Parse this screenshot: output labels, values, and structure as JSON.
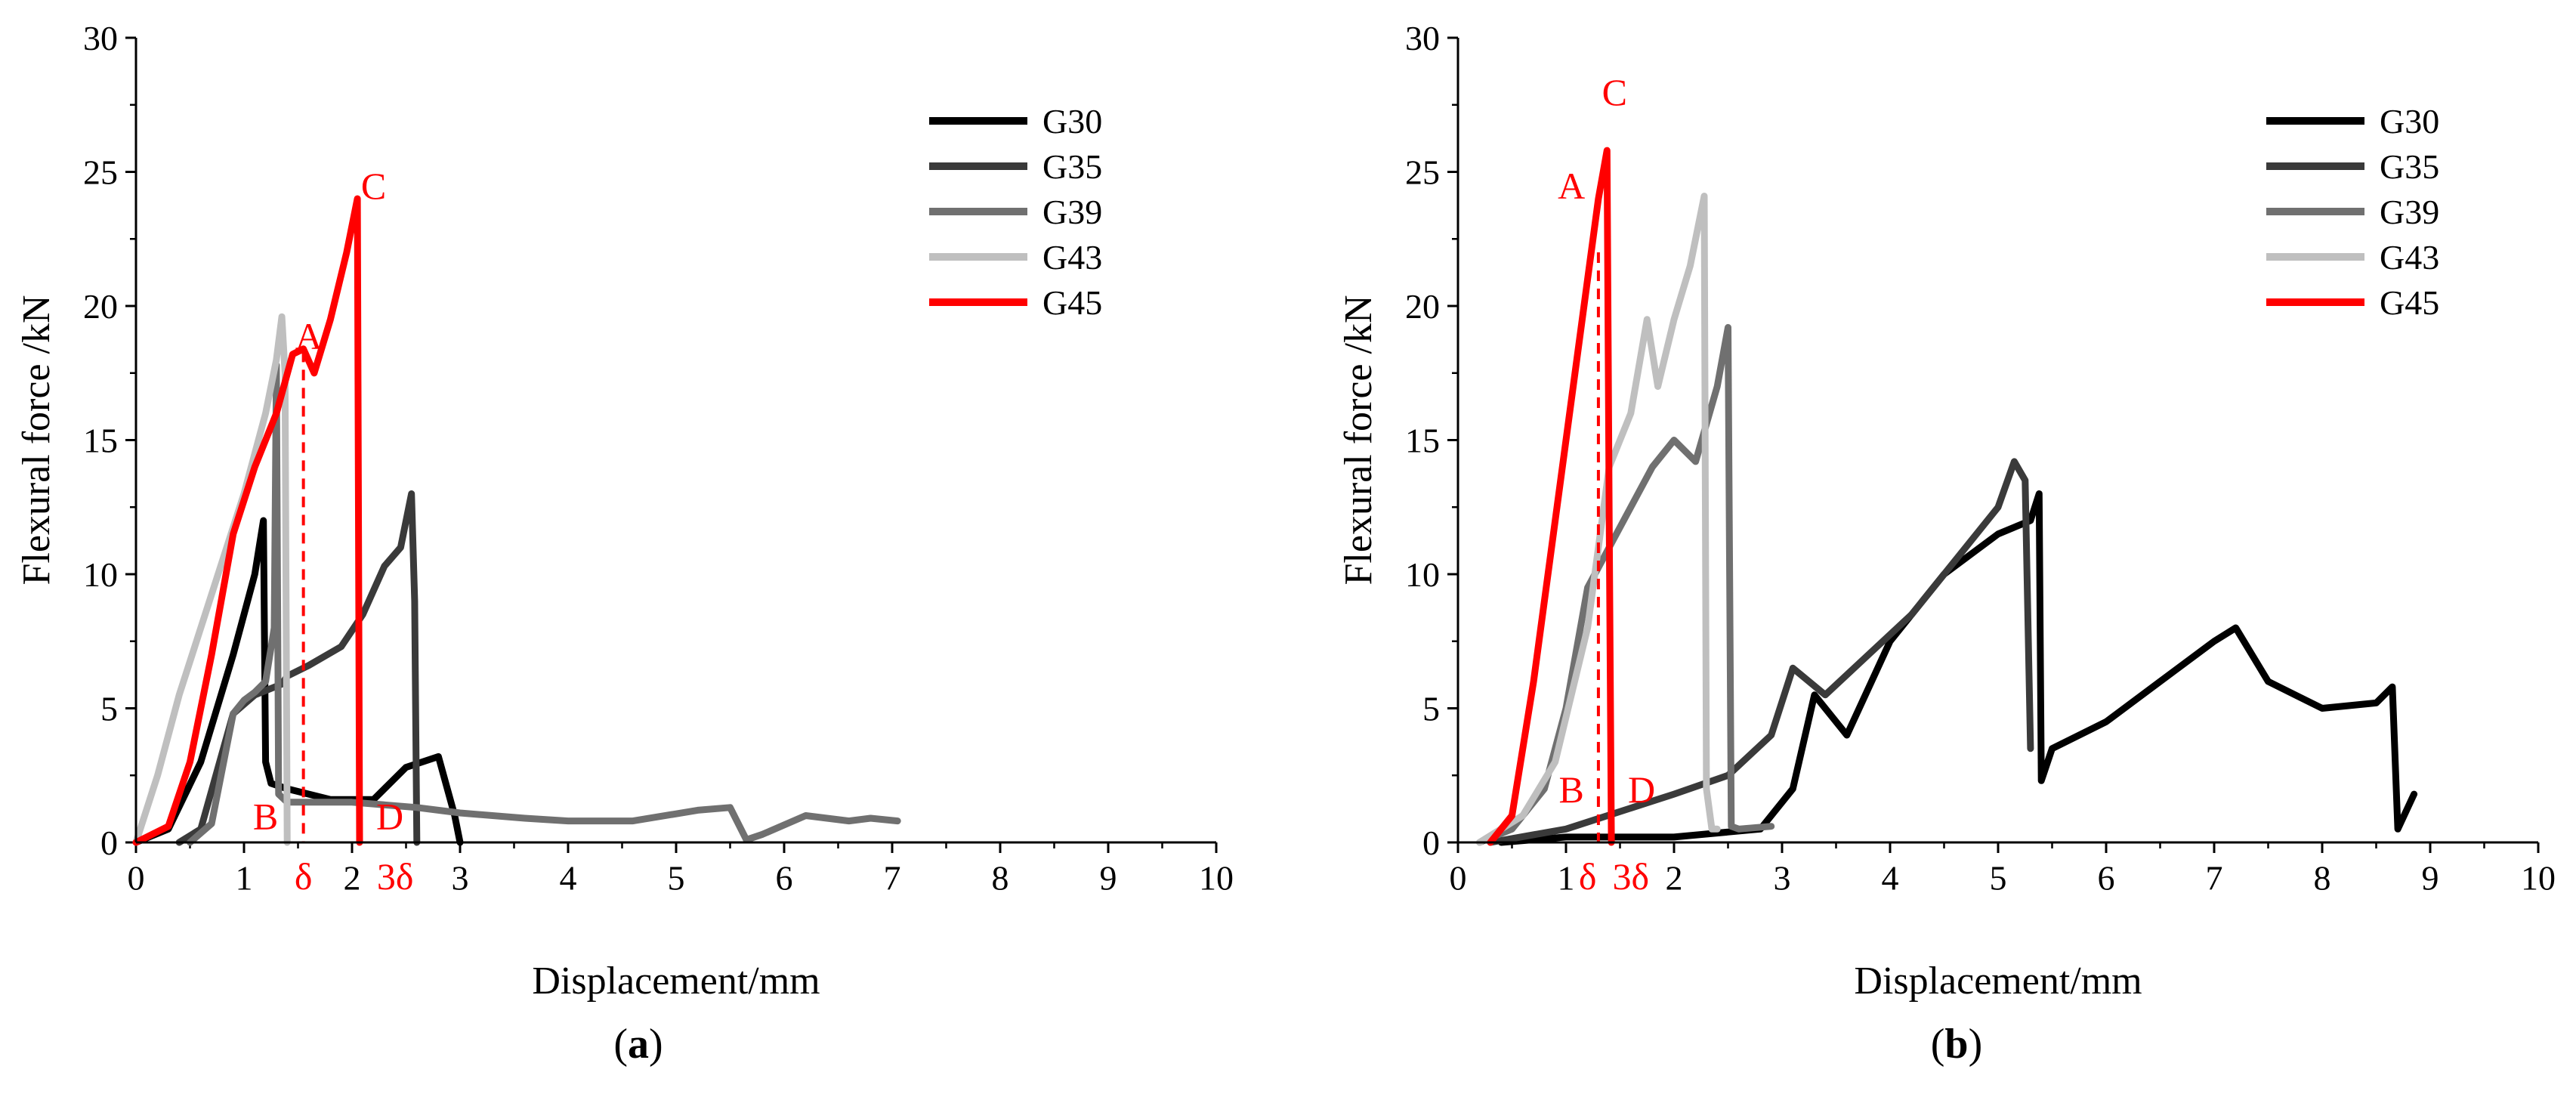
{
  "colors": {
    "G30": "#000000",
    "G35": "#3a3a3a",
    "G39": "#707070",
    "G43": "#bfbfbf",
    "G45": "#ff0000",
    "annotation": "#ff0000",
    "axis": "#000000"
  },
  "chart_data": [
    {
      "panel_label": "(a)",
      "panel_letter": "a",
      "type": "line",
      "title": "",
      "xlabel": "Displacement/mm",
      "ylabel": "Flexural force /kN",
      "xlim": [
        0,
        10
      ],
      "ylim": [
        0,
        30
      ],
      "x_ticks": [
        "0",
        "1",
        "2",
        "3",
        "4",
        "5",
        "6",
        "7",
        "8",
        "9",
        "10"
      ],
      "y_ticks": [
        "0",
        "5",
        "10",
        "15",
        "20",
        "25",
        "30"
      ],
      "legend_position": "top-right",
      "series": [
        {
          "name": "G30",
          "x": [
            0,
            0.3,
            0.6,
            0.9,
            1.1,
            1.18,
            1.2,
            1.25,
            1.4,
            1.8,
            2.2,
            2.5,
            2.8,
            2.95,
            3.0
          ],
          "y": [
            0,
            0.5,
            3,
            7,
            10,
            12,
            3,
            2.2,
            2.0,
            1.6,
            1.6,
            2.8,
            3.2,
            1.0,
            0
          ]
        },
        {
          "name": "G35",
          "x": [
            0.4,
            0.6,
            0.9,
            1.1,
            1.35,
            1.4,
            1.6,
            1.9,
            2.1,
            2.3,
            2.45,
            2.55,
            2.58,
            2.6
          ],
          "y": [
            0,
            0.5,
            4.8,
            5.5,
            5.9,
            6.2,
            6.6,
            7.3,
            8.5,
            10.3,
            11,
            13,
            9,
            0
          ]
        },
        {
          "name": "G39",
          "x": [
            0.5,
            0.7,
            0.9,
            1.0,
            1.1,
            1.2,
            1.28,
            1.3,
            1.32,
            1.4,
            2.0,
            2.6,
            3.0,
            3.6,
            4.0,
            4.6,
            5.2,
            5.5,
            5.65,
            5.8,
            6.2,
            6.6,
            6.8,
            7.05
          ],
          "y": [
            0,
            0.7,
            4.8,
            5.3,
            5.6,
            6,
            8,
            17.8,
            1.8,
            1.5,
            1.5,
            1.3,
            1.1,
            0.9,
            0.8,
            0.8,
            1.2,
            1.3,
            0.1,
            0.3,
            1.0,
            0.8,
            0.9,
            0.8
          ]
        },
        {
          "name": "G43",
          "x": [
            0,
            0.2,
            0.4,
            0.6,
            0.8,
            1.0,
            1.2,
            1.3,
            1.35,
            1.38,
            1.4
          ],
          "y": [
            0,
            2.5,
            5.5,
            8,
            10.5,
            13,
            16,
            18,
            19.6,
            17.5,
            0
          ]
        },
        {
          "name": "G45",
          "x": [
            0,
            0.3,
            0.5,
            0.7,
            0.9,
            1.1,
            1.3,
            1.45,
            1.55,
            1.65,
            1.8,
            1.95,
            2.05,
            2.07
          ],
          "y": [
            0,
            0.6,
            3,
            7,
            11.5,
            14,
            16,
            18.2,
            18.4,
            17.5,
            19.5,
            22,
            24,
            0
          ]
        }
      ],
      "annotations": {
        "A": {
          "label": "A",
          "x": 1.6,
          "y": 18.4
        },
        "B": {
          "label": "B",
          "x": 1.2,
          "y": 0.5
        },
        "C": {
          "label": "C",
          "x": 2.2,
          "y": 24
        },
        "D": {
          "label": "D",
          "x": 2.35,
          "y": 0.5
        },
        "delta": {
          "label": "δ",
          "x": 1.55
        },
        "three_delta": {
          "label": "3δ",
          "x": 2.4
        },
        "dashed_x": 1.55,
        "dashed_y": 18.3
      }
    },
    {
      "panel_label": "(b)",
      "panel_letter": "b",
      "type": "line",
      "title": "",
      "xlabel": "Displacement/mm",
      "ylabel": "Flexural force /kN",
      "xlim": [
        0,
        10
      ],
      "ylim": [
        0,
        30
      ],
      "x_ticks": [
        "0",
        "1",
        "2",
        "3",
        "4",
        "5",
        "6",
        "7",
        "8",
        "9",
        "10"
      ],
      "y_ticks": [
        "0",
        "5",
        "10",
        "15",
        "20",
        "25",
        "30"
      ],
      "legend_position": "top-right",
      "series": [
        {
          "name": "G30",
          "x": [
            0.4,
            1.0,
            2.0,
            2.8,
            3.1,
            3.3,
            3.6,
            4.0,
            4.5,
            5.0,
            5.3,
            5.38,
            5.4,
            5.5,
            6.0,
            6.5,
            7.0,
            7.2,
            7.5,
            8.0,
            8.5,
            8.65,
            8.7,
            8.85
          ],
          "y": [
            0,
            0.2,
            0.2,
            0.5,
            2,
            5.5,
            4,
            7.5,
            10,
            11.5,
            12,
            13,
            2.3,
            3.5,
            4.5,
            6,
            7.5,
            8,
            6,
            5,
            5.2,
            5.8,
            0.5,
            1.8
          ]
        },
        {
          "name": "G35",
          "x": [
            0.3,
            1.0,
            2.0,
            2.5,
            2.9,
            3.1,
            3.4,
            3.8,
            4.2,
            4.6,
            5.0,
            5.15,
            5.25,
            5.3
          ],
          "y": [
            0,
            0.5,
            1.8,
            2.5,
            4,
            6.5,
            5.5,
            7,
            8.5,
            10.5,
            12.5,
            14.2,
            13.5,
            3.5
          ]
        },
        {
          "name": "G39",
          "x": [
            0.2,
            0.5,
            0.8,
            1.0,
            1.2,
            1.4,
            1.8,
            2.0,
            2.2,
            2.4,
            2.5,
            2.53,
            2.6,
            2.9
          ],
          "y": [
            0,
            0.5,
            2,
            5,
            9.5,
            11,
            14,
            15,
            14.2,
            17,
            19.2,
            0.6,
            0.5,
            0.6
          ]
        },
        {
          "name": "G43",
          "x": [
            0.2,
            0.6,
            0.9,
            1.2,
            1.4,
            1.6,
            1.75,
            1.85,
            2.0,
            2.15,
            2.28,
            2.3,
            2.35,
            2.4
          ],
          "y": [
            0,
            1,
            3,
            8,
            14,
            16,
            19.5,
            17,
            19.5,
            21.5,
            24.1,
            2,
            0.5,
            0.5
          ]
        },
        {
          "name": "G45",
          "x": [
            0.3,
            0.5,
            0.7,
            0.9,
            1.1,
            1.2,
            1.3,
            1.38,
            1.4,
            1.42
          ],
          "y": [
            0,
            1,
            6,
            12,
            18,
            21,
            24,
            25.8,
            12,
            0
          ]
        }
      ],
      "annotations": {
        "A": {
          "label": "A",
          "x": 1.05,
          "y": 24
        },
        "B": {
          "label": "B",
          "x": 1.05,
          "y": 1.5
        },
        "C": {
          "label": "C",
          "x": 1.45,
          "y": 27.5
        },
        "D": {
          "label": "D",
          "x": 1.7,
          "y": 1.5
        },
        "delta": {
          "label": "δ",
          "x": 1.2
        },
        "three_delta": {
          "label": "3δ",
          "x": 1.6
        },
        "dashed_x": 1.3,
        "dashed_y": 22
      }
    }
  ]
}
